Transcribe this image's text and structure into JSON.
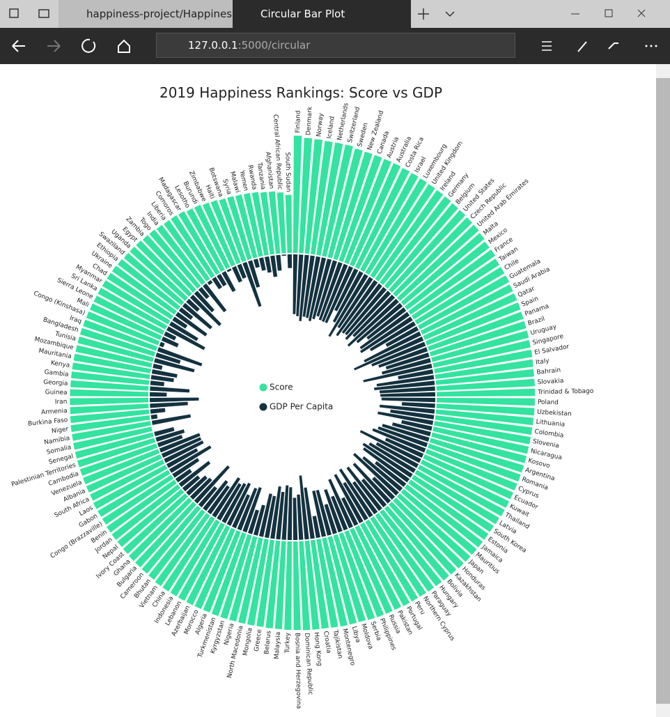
{
  "browser": {
    "tabs": [
      "happiness-project/Happines",
      "Circular Bar Plot"
    ],
    "url_host": "127.0.0.1",
    "url_path": ":5000/circular"
  },
  "chart_data": {
    "type": "radial-bar",
    "title": "2019 Happiness Rankings: Score vs GDP",
    "categories": [
      "Finland",
      "Denmark",
      "Norway",
      "Iceland",
      "Netherlands",
      "Switzerland",
      "Sweden",
      "New Zealand",
      "Canada",
      "Austria",
      "Australia",
      "Costa Rica",
      "Israel",
      "Luxembourg",
      "United Kingdom",
      "Ireland",
      "Germany",
      "Belgium",
      "United States",
      "Czech Republic",
      "United Arab Emirates",
      "Malta",
      "Mexico",
      "France",
      "Taiwan",
      "Chile",
      "Guatemala",
      "Saudi Arabia",
      "Qatar",
      "Spain",
      "Panama",
      "Brazil",
      "Uruguay",
      "Singapore",
      "El Salvador",
      "Italy",
      "Bahrain",
      "Slovakia",
      "Trinidad & Tobago",
      "Poland",
      "Uzbekistan",
      "Lithuania",
      "Colombia",
      "Slovenia",
      "Nicaragua",
      "Kosovo",
      "Argentina",
      "Romania",
      "Cyprus",
      "Ecuador",
      "Kuwait",
      "Thailand",
      "Latvia",
      "South Korea",
      "Estonia",
      "Jamaica",
      "Mauritius",
      "Japan",
      "Honduras",
      "Kazakhstan",
      "Bolivia",
      "Hungary",
      "Paraguay",
      "Northern Cyprus",
      "Peru",
      "Portugal",
      "Pakistan",
      "Russia",
      "Philippines",
      "Serbia",
      "Moldova",
      "Libya",
      "Montenegro",
      "Tajikistan",
      "Croatia",
      "Hong Kong",
      "Dominican Republic",
      "Bosnia and Herzegovina",
      "Turkey",
      "Malaysia",
      "Belarus",
      "Greece",
      "Mongolia",
      "North Macedonia",
      "Nigeria",
      "Kyrgyzstan",
      "Turkmenistan",
      "Algeria",
      "Morocco",
      "Azerbaijan",
      "Lebanon",
      "Indonesia",
      "China",
      "Vietnam",
      "Bhutan",
      "Cameroon",
      "Bulgaria",
      "Ghana",
      "Ivory Coast",
      "Nepal",
      "Jordan",
      "Benin",
      "Congo (Brazzaville)",
      "Gabon",
      "Laos",
      "South Africa",
      "Albania",
      "Venezuela",
      "Cambodia",
      "Palestinian Territories",
      "Senegal",
      "Somalia",
      "Namibia",
      "Niger",
      "Burkina Faso",
      "Armenia",
      "Iran",
      "Guinea",
      "Georgia",
      "Gambia",
      "Kenya",
      "Mauritania",
      "Mozambique",
      "Tunisia",
      "Bangladesh",
      "Iraq",
      "Congo (Kinshasa)",
      "Mali",
      "Sierra Leone",
      "Sri Lanka",
      "Myanmar",
      "Chad",
      "Ukraine",
      "Ethiopia",
      "Swaziland",
      "Uganda",
      "Egypt",
      "Zambia",
      "Togo",
      "India",
      "Liberia",
      "Comoros",
      "Madagascar",
      "Lesotho",
      "Burundi",
      "Zimbabwe",
      "Haiti",
      "Botswana",
      "Syria",
      "Malawi",
      "Yemen",
      "Rwanda",
      "Tanzania",
      "Afghanistan",
      "Central African Republic",
      "South Sudan"
    ],
    "series": [
      {
        "name": "Score",
        "color": "#33e39f",
        "values": [
          7.769,
          7.6,
          7.554,
          7.494,
          7.488,
          7.48,
          7.343,
          7.307,
          7.278,
          7.246,
          7.228,
          7.167,
          7.139,
          7.09,
          7.054,
          7.021,
          6.985,
          6.923,
          6.892,
          6.852,
          6.825,
          6.726,
          6.595,
          6.592,
          6.446,
          6.444,
          6.436,
          6.375,
          6.374,
          6.354,
          6.321,
          6.3,
          6.293,
          6.262,
          6.253,
          6.223,
          6.199,
          6.198,
          6.192,
          6.182,
          6.174,
          6.149,
          6.125,
          6.118,
          6.105,
          6.1,
          6.086,
          6.07,
          6.046,
          6.028,
          6.021,
          6.008,
          5.94,
          5.895,
          5.893,
          5.89,
          5.888,
          5.886,
          5.86,
          5.809,
          5.779,
          5.758,
          5.743,
          5.718,
          5.697,
          5.693,
          5.653,
          5.648,
          5.631,
          5.603,
          5.529,
          5.525,
          5.523,
          5.467,
          5.432,
          5.43,
          5.425,
          5.386,
          5.373,
          5.339,
          5.323,
          5.287,
          5.285,
          5.274,
          5.265,
          5.261,
          5.247,
          5.211,
          5.208,
          5.208,
          5.197,
          5.192,
          5.191,
          5.175,
          5.082,
          5.044,
          5.011,
          4.996,
          4.944,
          4.913,
          4.906,
          4.883,
          4.812,
          4.799,
          4.796,
          4.722,
          4.719,
          4.707,
          4.7,
          4.696,
          4.681,
          4.668,
          4.639,
          4.628,
          4.587,
          4.559,
          4.548,
          4.534,
          4.519,
          4.516,
          4.509,
          4.49,
          4.466,
          4.461,
          4.456,
          4.437,
          4.418,
          4.39,
          4.374,
          4.366,
          4.36,
          4.35,
          4.332,
          4.286,
          4.212,
          4.189,
          4.166,
          4.107,
          4.085,
          4.015,
          3.975,
          3.973,
          3.933,
          3.802,
          3.775,
          3.663,
          3.597,
          3.488,
          3.462,
          3.41,
          3.38,
          3.334,
          3.231,
          3.203,
          3.083,
          2.853
        ]
      },
      {
        "name": "GDP Per Capita",
        "color": "#14323f",
        "values": [
          1.34,
          1.383,
          1.488,
          1.38,
          1.396,
          1.452,
          1.387,
          1.303,
          1.365,
          1.376,
          1.372,
          1.034,
          1.276,
          1.609,
          1.333,
          1.499,
          1.373,
          1.356,
          1.433,
          1.269,
          1.503,
          1.3,
          1.07,
          1.324,
          1.368,
          1.159,
          0.8,
          1.403,
          1.684,
          1.286,
          1.149,
          1.004,
          1.124,
          1.572,
          0.794,
          1.294,
          1.362,
          1.246,
          1.231,
          1.206,
          0.745,
          1.238,
          0.985,
          1.258,
          0.694,
          0.882,
          1.092,
          1.162,
          1.263,
          0.912,
          1.5,
          1.05,
          1.187,
          1.301,
          1.237,
          0.831,
          1.12,
          1.327,
          0.642,
          1.173,
          0.776,
          1.201,
          0.855,
          1.263,
          0.96,
          1.221,
          0.677,
          1.183,
          0.807,
          1.004,
          0.685,
          1.044,
          1.051,
          0.493,
          1.155,
          1.438,
          1.015,
          0.945,
          1.183,
          1.221,
          1.067,
          1.181,
          0.948,
          0.983,
          0.696,
          0.551,
          1.052,
          1.002,
          0.801,
          1.043,
          0.987,
          0.931,
          1.029,
          0.741,
          0.813,
          0.549,
          1.092,
          0.611,
          0.569,
          0.446,
          0.837,
          0.393,
          0.673,
          1.057,
          0.764,
          0.96,
          0.947,
          0.96,
          0.574,
          0.657,
          0.45,
          0,
          0.879,
          0.138,
          0.331,
          0.85,
          1.1,
          0.38,
          0.886,
          0.308,
          0.512,
          0.57,
          0.204,
          0.921,
          0.562,
          1.043,
          0.094,
          0.385,
          0.268,
          0.949,
          0.71,
          0.35,
          0.82,
          0.336,
          0.811,
          0.332,
          0.913,
          0.578,
          0.275,
          0.755,
          0.073,
          0.274,
          0.274,
          0.489,
          0.046,
          0.366,
          0.323,
          1.041,
          0.619,
          0.191,
          0.287,
          0.359,
          0.476,
          0.35,
          0.026,
          0.306
        ]
      }
    ]
  }
}
